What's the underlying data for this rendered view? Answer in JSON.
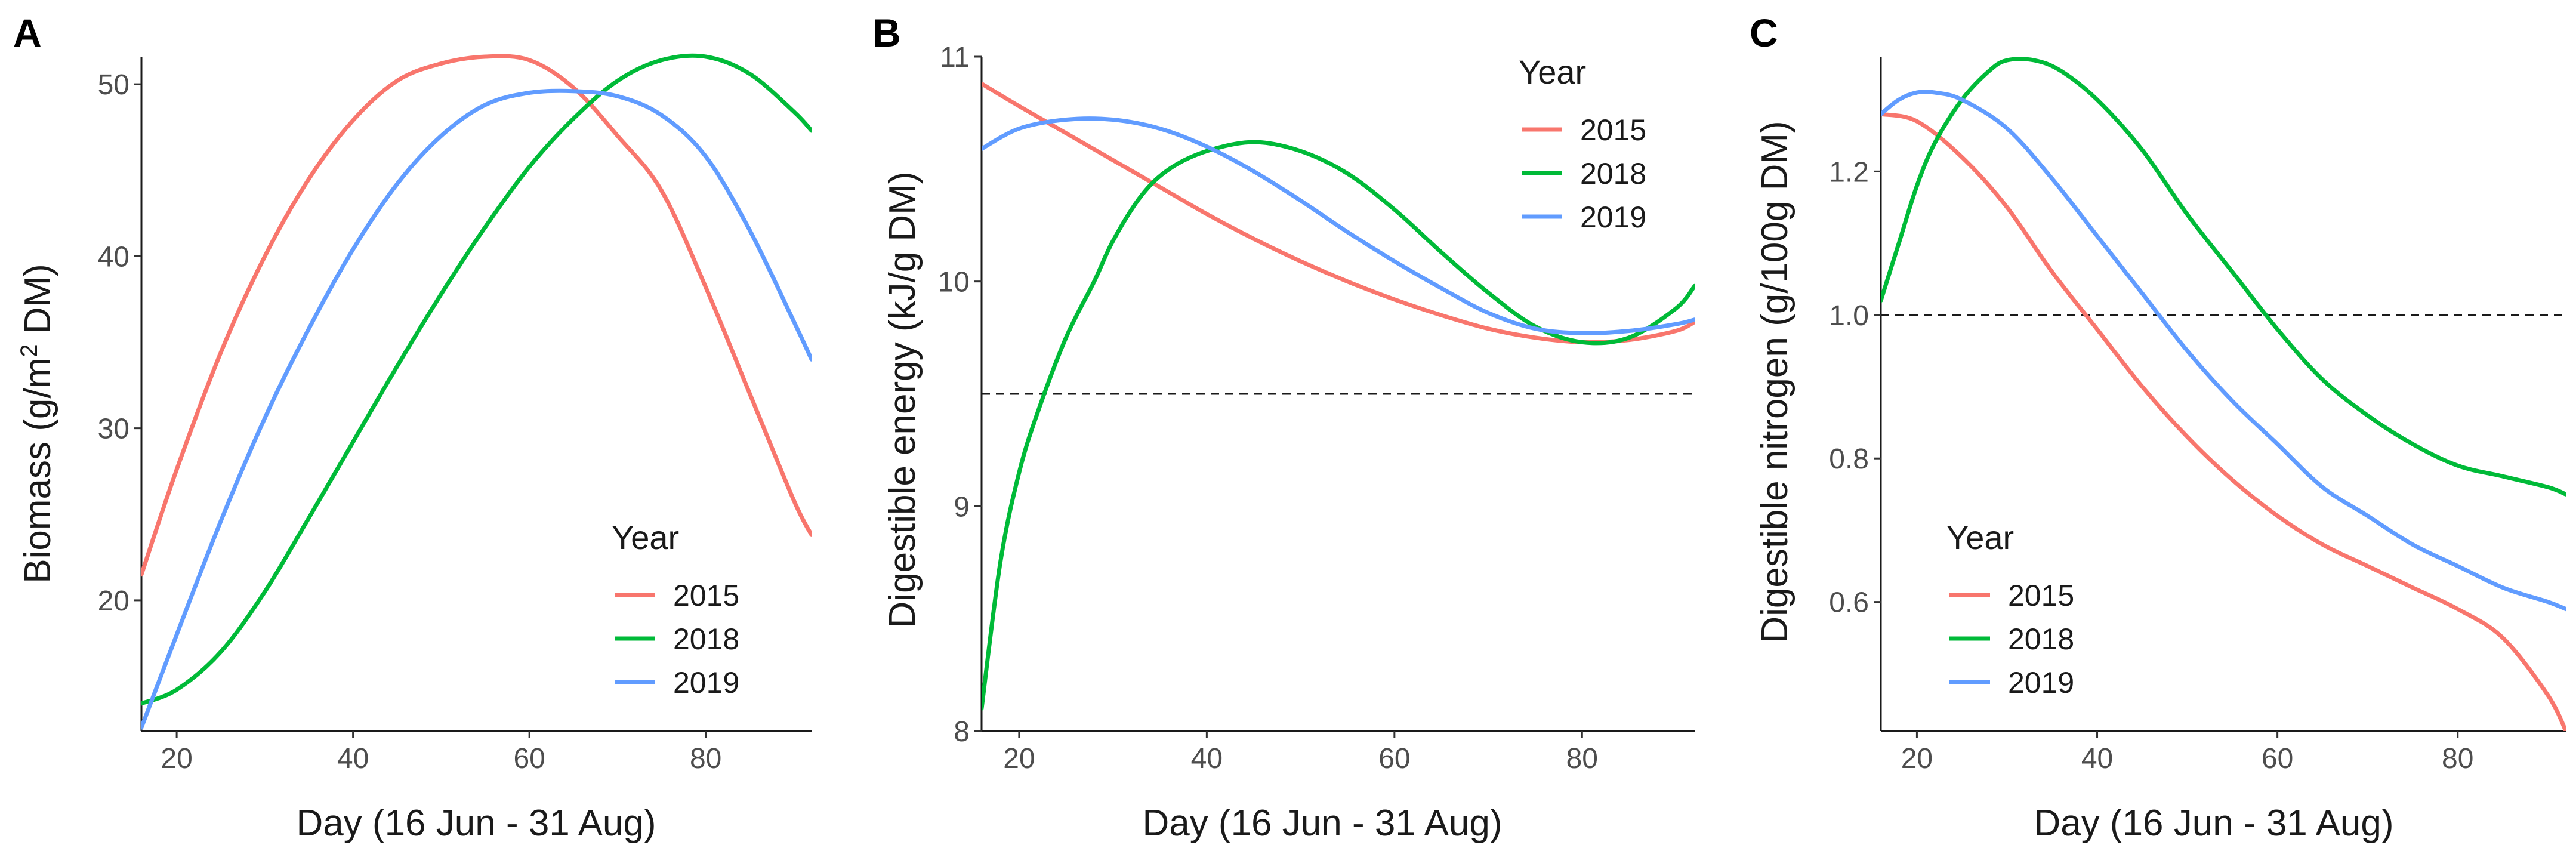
{
  "chart_data": [
    {
      "type": "line",
      "panel_label": "A",
      "xlabel": "Day (16 Jun - 31 Aug)",
      "ylabel_pre": "Biomass (g/",
      "ylabel_unit": "m",
      "ylabel_sup": "2",
      "ylabel_post": " DM)",
      "xlim": [
        16,
        92
      ],
      "ylim": [
        12.4,
        51.6
      ],
      "xticks": [
        20,
        40,
        60,
        80
      ],
      "yticks": [
        20,
        30,
        40,
        50
      ],
      "legend": {
        "title": "Year",
        "position": "bottom-right"
      },
      "series": [
        {
          "name": "2015",
          "color": "#F8766D",
          "x": [
            16,
            20,
            25,
            30,
            35,
            40,
            45,
            50,
            55,
            60,
            65,
            70,
            75,
            80,
            85,
            90,
            92
          ],
          "y": [
            21.5,
            27.6,
            34.4,
            40.0,
            44.5,
            47.9,
            50.2,
            51.2,
            51.6,
            51.4,
            49.8,
            47.0,
            43.8,
            38.2,
            32.0,
            25.8,
            23.8
          ]
        },
        {
          "name": "2018",
          "color": "#00BA38",
          "x": [
            16,
            20,
            25,
            30,
            35,
            40,
            45,
            50,
            55,
            60,
            65,
            70,
            75,
            80,
            85,
            90,
            92
          ],
          "y": [
            14.0,
            14.8,
            17.0,
            20.5,
            24.8,
            29.2,
            33.6,
            37.8,
            41.7,
            45.2,
            48.0,
            50.2,
            51.4,
            51.6,
            50.6,
            48.4,
            47.3
          ]
        },
        {
          "name": "2019",
          "color": "#619CFF",
          "x": [
            16,
            20,
            25,
            30,
            35,
            40,
            45,
            50,
            55,
            60,
            65,
            70,
            75,
            80,
            85,
            90,
            92
          ],
          "y": [
            12.6,
            18.0,
            24.6,
            30.6,
            35.8,
            40.4,
            44.2,
            47.0,
            48.8,
            49.5,
            49.6,
            49.3,
            48.2,
            45.8,
            41.5,
            36.2,
            34.0
          ]
        }
      ]
    },
    {
      "type": "line",
      "panel_label": "B",
      "xlabel": "Day (16 Jun - 31 Aug)",
      "ylabel": "Digestible energy (kJ/g DM)",
      "xlim": [
        16,
        92
      ],
      "ylim": [
        8,
        11
      ],
      "xticks": [
        20,
        40,
        60,
        80
      ],
      "yticks": [
        8,
        9,
        10,
        11
      ],
      "reference_line": 9.5,
      "legend": {
        "title": "Year",
        "position": "top-right"
      },
      "series": [
        {
          "name": "2015",
          "color": "#F8766D",
          "x": [
            16,
            20,
            25,
            30,
            35,
            40,
            45,
            50,
            55,
            60,
            65,
            70,
            75,
            80,
            85,
            90,
            92
          ],
          "y": [
            10.88,
            10.78,
            10.66,
            10.54,
            10.42,
            10.3,
            10.19,
            10.09,
            10.0,
            9.92,
            9.85,
            9.79,
            9.75,
            9.73,
            9.74,
            9.78,
            9.82
          ]
        },
        {
          "name": "2018",
          "color": "#00BA38",
          "x": [
            16,
            18,
            20,
            22,
            25,
            28,
            30,
            33,
            36,
            40,
            45,
            50,
            55,
            60,
            65,
            70,
            75,
            80,
            85,
            90,
            92
          ],
          "y": [
            8.1,
            8.75,
            9.15,
            9.42,
            9.75,
            10.0,
            10.18,
            10.38,
            10.5,
            10.58,
            10.62,
            10.58,
            10.48,
            10.32,
            10.13,
            9.95,
            9.8,
            9.73,
            9.75,
            9.88,
            9.98
          ]
        },
        {
          "name": "2019",
          "color": "#619CFF",
          "x": [
            16,
            20,
            25,
            30,
            35,
            40,
            45,
            50,
            55,
            60,
            65,
            70,
            75,
            80,
            85,
            90,
            92
          ],
          "y": [
            10.59,
            10.68,
            10.72,
            10.72,
            10.68,
            10.6,
            10.49,
            10.36,
            10.22,
            10.09,
            9.97,
            9.86,
            9.79,
            9.77,
            9.78,
            9.81,
            9.83
          ]
        }
      ]
    },
    {
      "type": "line",
      "panel_label": "C",
      "xlabel": "Day (16 Jun - 31 Aug)",
      "ylabel": "Digestible nitrogen (g/100g DM)",
      "xlim": [
        16,
        92
      ],
      "ylim": [
        0.42,
        1.36
      ],
      "xticks": [
        20,
        40,
        60,
        80
      ],
      "yticks": [
        0.6,
        0.8,
        1.0,
        1.2
      ],
      "reference_line": 1.0,
      "legend": {
        "title": "Year",
        "position": "bottom-left"
      },
      "series": [
        {
          "name": "2015",
          "color": "#F8766D",
          "x": [
            16,
            20,
            25,
            30,
            35,
            40,
            45,
            50,
            55,
            60,
            65,
            70,
            75,
            80,
            85,
            90,
            92
          ],
          "y": [
            1.28,
            1.27,
            1.22,
            1.15,
            1.06,
            0.98,
            0.9,
            0.83,
            0.77,
            0.72,
            0.68,
            0.65,
            0.62,
            0.59,
            0.55,
            0.47,
            0.42
          ]
        },
        {
          "name": "2018",
          "color": "#00BA38",
          "x": [
            16,
            18,
            20,
            22,
            25,
            28,
            30,
            33,
            36,
            40,
            45,
            50,
            55,
            60,
            65,
            70,
            75,
            80,
            85,
            90,
            92
          ],
          "y": [
            1.02,
            1.1,
            1.18,
            1.24,
            1.3,
            1.34,
            1.355,
            1.355,
            1.34,
            1.3,
            1.23,
            1.14,
            1.06,
            0.98,
            0.91,
            0.86,
            0.82,
            0.79,
            0.775,
            0.76,
            0.75
          ]
        },
        {
          "name": "2019",
          "color": "#619CFF",
          "x": [
            16,
            18,
            20,
            22,
            25,
            30,
            35,
            40,
            45,
            50,
            55,
            60,
            65,
            70,
            75,
            80,
            85,
            90,
            92
          ],
          "y": [
            1.28,
            1.3,
            1.31,
            1.31,
            1.3,
            1.26,
            1.19,
            1.11,
            1.03,
            0.95,
            0.88,
            0.82,
            0.76,
            0.72,
            0.68,
            0.65,
            0.62,
            0.6,
            0.59
          ]
        }
      ]
    }
  ]
}
